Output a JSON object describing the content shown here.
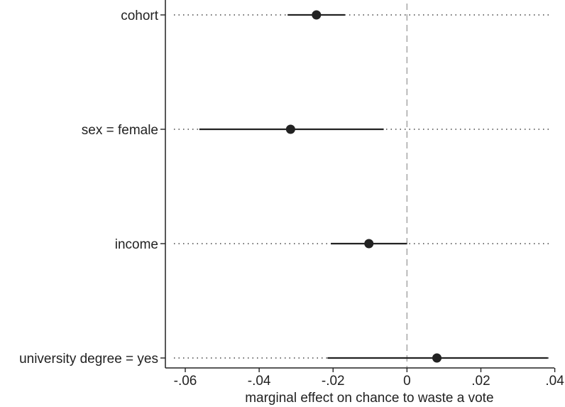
{
  "chart_data": {
    "type": "scatter",
    "subtype": "coefficient-plot",
    "xlabel": "marginal effect on chance to waste a vote",
    "xlim": [
      -0.0625,
      0.0395
    ],
    "xticks": [
      {
        "value": -0.06,
        "label": "-.06"
      },
      {
        "value": -0.04,
        "label": "-.04"
      },
      {
        "value": -0.02,
        "label": "-.02"
      },
      {
        "value": 0,
        "label": "0"
      },
      {
        "value": 0.02,
        "label": ".02"
      },
      {
        "value": 0.04,
        "label": ".04"
      }
    ],
    "reference_line": 0,
    "grid": "horizontal dotted",
    "series": [
      {
        "category": "cohort",
        "estimate": -0.0245,
        "ci_low": -0.0323,
        "ci_high": -0.0168
      },
      {
        "category": "sex = female",
        "estimate": -0.0315,
        "ci_low": -0.0562,
        "ci_high": -0.0063
      },
      {
        "category": "income",
        "estimate": -0.0103,
        "ci_low": -0.0206,
        "ci_high": 0.0
      },
      {
        "category": "university degree = yes",
        "estimate": 0.0081,
        "ci_low": -0.0215,
        "ci_high": 0.0381
      }
    ],
    "colors": {
      "marker": "#222222",
      "ci": "#222222",
      "grid": "#444444",
      "refline": "#aaaaaa"
    }
  }
}
